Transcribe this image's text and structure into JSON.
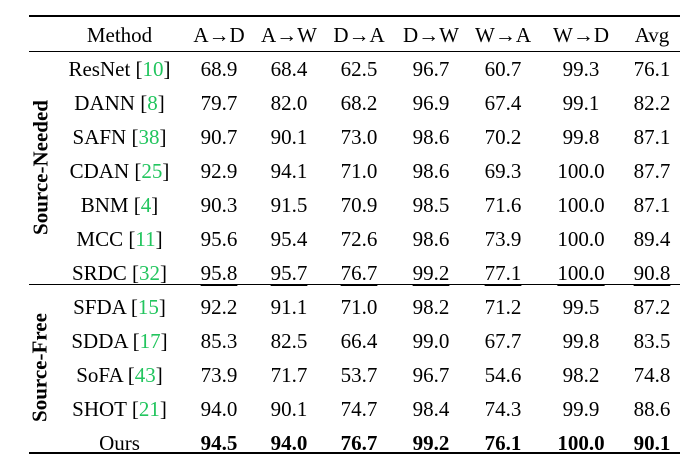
{
  "columns": [
    "Method",
    "A→D",
    "A→W",
    "D→A",
    "D→W",
    "W→A",
    "W→D",
    "Avg"
  ],
  "groups": [
    {
      "label": "Source-Needed",
      "rows": [
        {
          "name": "ResNet",
          "cite": "10",
          "values": [
            "68.9",
            "68.4",
            "62.5",
            "96.7",
            "60.7",
            "99.3",
            "76.1"
          ]
        },
        {
          "name": "DANN",
          "cite": "8",
          "values": [
            "79.7",
            "82.0",
            "68.2",
            "96.9",
            "67.4",
            "99.1",
            "82.2"
          ]
        },
        {
          "name": "SAFN",
          "cite": "38",
          "values": [
            "90.7",
            "90.1",
            "73.0",
            "98.6",
            "70.2",
            "99.8",
            "87.1"
          ]
        },
        {
          "name": "CDAN",
          "cite": "25",
          "values": [
            "92.9",
            "94.1",
            "71.0",
            "98.6",
            "69.3",
            "100.0",
            "87.7"
          ]
        },
        {
          "name": "BNM",
          "cite": "4",
          "values": [
            "90.3",
            "91.5",
            "70.9",
            "98.5",
            "71.6",
            "100.0",
            "87.1"
          ]
        },
        {
          "name": "MCC",
          "cite": "11",
          "values": [
            "95.6",
            "95.4",
            "72.6",
            "98.6",
            "73.9",
            "100.0",
            "89.4"
          ]
        },
        {
          "name": "SRDC",
          "cite": "32",
          "values": [
            "95.8",
            "95.7",
            "76.7",
            "99.2",
            "77.1",
            "100.0",
            "90.8"
          ]
        }
      ]
    },
    {
      "label": "Source-Free",
      "rows": [
        {
          "name": "SFDA",
          "cite": "15",
          "values": [
            "92.2",
            "91.1",
            "71.0",
            "98.2",
            "71.2",
            "99.5",
            "87.2"
          ]
        },
        {
          "name": "SDDA",
          "cite": "17",
          "values": [
            "85.3",
            "82.5",
            "66.4",
            "99.0",
            "67.7",
            "99.8",
            "83.5"
          ]
        },
        {
          "name": "SoFA",
          "cite": "43",
          "values": [
            "73.9",
            "71.7",
            "53.7",
            "96.7",
            "54.6",
            "98.2",
            "74.8"
          ]
        },
        {
          "name": "SHOT",
          "cite": "21",
          "values": [
            "94.0",
            "90.1",
            "74.7",
            "98.4",
            "74.3",
            "99.9",
            "88.6"
          ]
        },
        {
          "name": "Ours",
          "cite": "",
          "values": [
            "94.5",
            "94.0",
            "76.7",
            "99.2",
            "76.1",
            "100.0",
            "90.1"
          ]
        }
      ]
    }
  ],
  "emphasis": {
    "bold_row": "Ours",
    "underlined_row": "SRDC"
  }
}
